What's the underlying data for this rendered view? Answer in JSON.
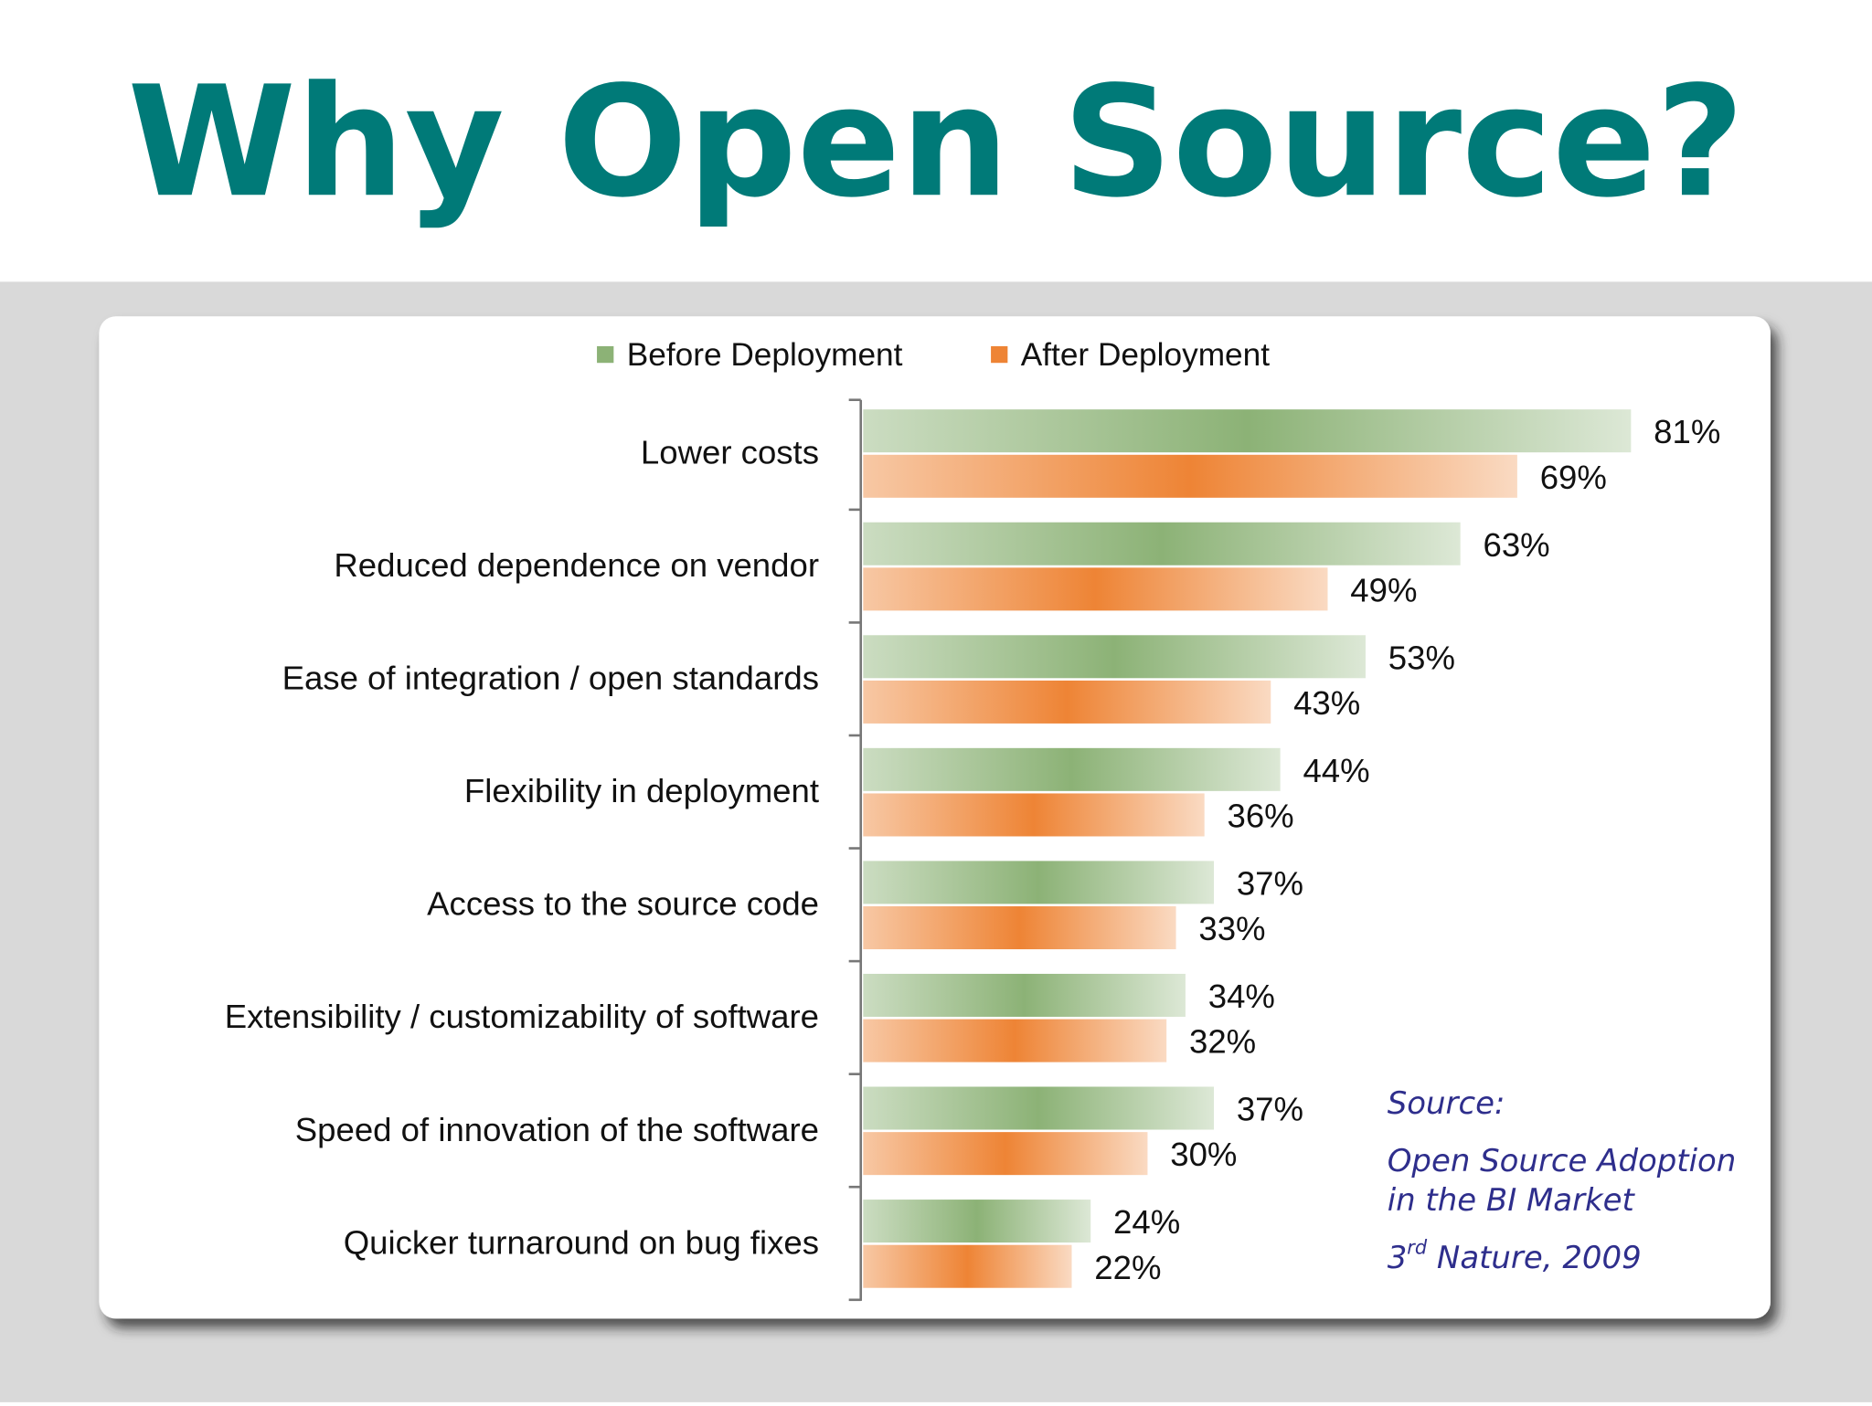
{
  "chart_data": {
    "type": "bar",
    "orientation": "horizontal",
    "title": "Why Open Source?",
    "categories": [
      "Lower costs",
      "Reduced dependence  on  vendor",
      "Ease of integration / open  standards",
      "Flexibility in deployment",
      "Access to the  source code",
      "Extensibility / customizability of software",
      "Speed of innovation  of the  software",
      "Quicker turnaround  on bug fixes"
    ],
    "series": [
      {
        "name": "Before Deployment",
        "color": "#8cb276",
        "values": [
          81,
          63,
          53,
          44,
          37,
          34,
          37,
          24
        ],
        "value_labels": [
          "81%",
          "63%",
          "53%",
          "44%",
          "37%",
          "34%",
          "37%",
          "24%"
        ]
      },
      {
        "name": "After Deployment",
        "color": "#ee8435",
        "values": [
          69,
          49,
          43,
          36,
          33,
          32,
          30,
          22
        ],
        "value_labels": [
          "69%",
          "49%",
          "43%",
          "36%",
          "33%",
          "32%",
          "30%",
          "22%"
        ]
      }
    ],
    "legend": "top",
    "source": {
      "label": "Source:",
      "lines": [
        "Open Source Adoption",
        "in the BI Market"
      ],
      "citation": [
        "3",
        "rd",
        " Nature, 2009"
      ]
    }
  }
}
